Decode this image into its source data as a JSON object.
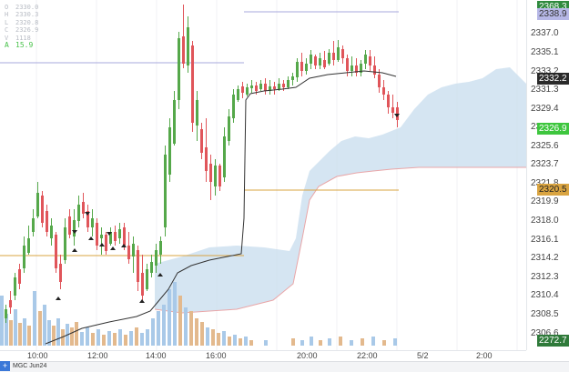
{
  "ohlc_panel": {
    "rows": [
      {
        "label": "O",
        "value": "2330.0"
      },
      {
        "label": "H",
        "value": "2330.3"
      },
      {
        "label": "L",
        "value": "2320.8"
      },
      {
        "label": "C",
        "value": "2326.9"
      },
      {
        "label": "V",
        "value": "1118"
      }
    ],
    "extra": {
      "label": "A",
      "value": "15.9"
    }
  },
  "price_axis": {
    "ticks": [
      "2337.0",
      "2335.1",
      "2333.2",
      "2331.3",
      "2329.4",
      "2327.5",
      "2325.6",
      "2323.7",
      "2321.8",
      "2319.9",
      "2318.0",
      "2316.1",
      "2314.2",
      "2312.3",
      "2310.4",
      "2308.5",
      "2306.6"
    ],
    "badges": [
      {
        "text": "2368.3",
        "bg": "#2f8a3e",
        "color": "#ffffff"
      },
      {
        "text": "2338.9",
        "bg": "#b6b7e6",
        "color": "#333333"
      },
      {
        "text": "2332.2",
        "bg": "#2a2a2a",
        "color": "#ffffff"
      },
      {
        "text": "2326.9",
        "bg": "#3ec63e",
        "color": "#ffffff"
      },
      {
        "text": "2320.5",
        "bg": "#d9a441",
        "color": "#222222"
      },
      {
        "text": "2272.7",
        "bg": "#2f7a3a",
        "color": "#ffffff"
      }
    ]
  },
  "time_axis": {
    "ticks": [
      "10:00",
      "12:00",
      "14:00",
      "16:00",
      "20:00",
      "22:00",
      "5/2",
      "2:00"
    ]
  },
  "footer": {
    "tab_label": "MGC Jun24",
    "add_icon": "plus-icon"
  },
  "colors": {
    "up": "#55a84a",
    "down": "#e0555a",
    "cloud": "#c7dcee",
    "vwap": "#333333",
    "volume_up": "#a9c9e8",
    "volume_down": "#e3b98d",
    "line_gold": "#d9a441",
    "line_purple": "#a7a8dc"
  }
}
